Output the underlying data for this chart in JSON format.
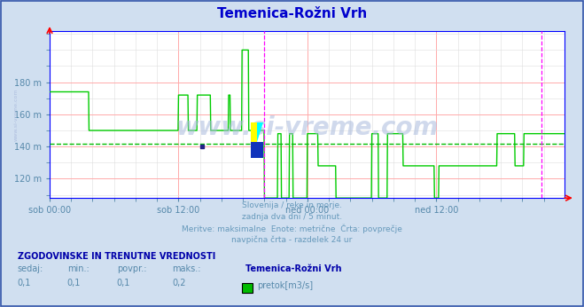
{
  "title": "Temenica-Rožni Vrh",
  "title_color": "#0000cd",
  "bg_color": "#d0dff0",
  "plot_bg_color": "#ffffff",
  "grid_color_major": "#ffaaaa",
  "grid_color_minor": "#dddddd",
  "avg_line_color": "#00bb00",
  "avg_line_value": 142,
  "tick_color": "#5588aa",
  "border_color": "#0000ff",
  "line_color": "#00cc00",
  "line_width": 1.0,
  "ylim": [
    108,
    212
  ],
  "yticks": [
    120,
    140,
    160,
    180
  ],
  "ylabel_texts": [
    "120 m",
    "140 m",
    "160 m",
    "180 m"
  ],
  "xtick_labels": [
    "sob 00:00",
    "sob 12:00",
    "ned 00:00",
    "ned 12:00"
  ],
  "xtick_positions": [
    0,
    288,
    576,
    864
  ],
  "total_points": 1152,
  "subtitle_lines": [
    "Slovenija / reke in morje.",
    "zadnja dva dni / 5 minut.",
    "Meritve: maksimalne  Enote: metrične  Črta: povprečje",
    "navpična črta - razdelek 24 ur"
  ],
  "subtitle_color": "#6699bb",
  "footer_bold": "ZGODOVINSKE IN TRENUTNE VREDNOSTI",
  "footer_bold_color": "#0000aa",
  "footer_labels": [
    "sedaj:",
    "min.:",
    "povpr.:",
    "maks.:"
  ],
  "footer_values": [
    "0,1",
    "0,1",
    "0,1",
    "0,2"
  ],
  "footer_station": "Temenica-Rožni Vrh",
  "footer_unit": "pretok[m3/s]",
  "legend_color": "#00bb00",
  "magenta_line_color": "#ff00ff",
  "watermark": "www.si-vreme.com",
  "watermark_color": "#aabbdd",
  "left_label": "www.si-vreme.com"
}
